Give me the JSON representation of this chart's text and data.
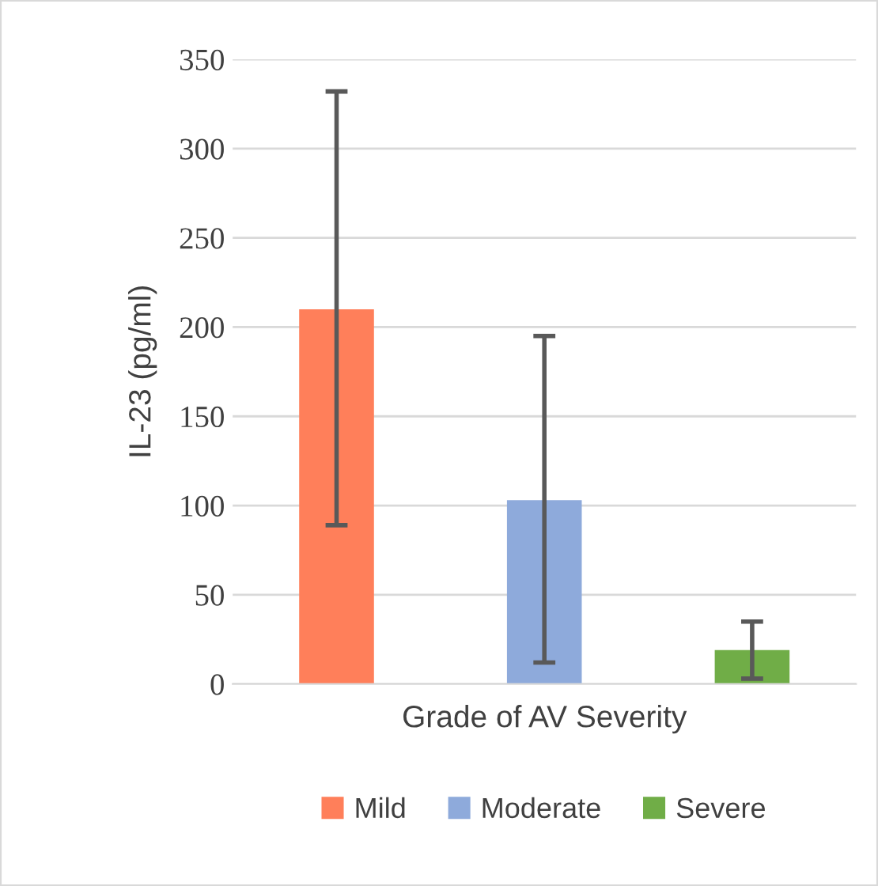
{
  "chart_data": {
    "type": "bar",
    "ylabel": "IL-23 (pg/ml)",
    "xlabel": "Grade of AV Severity",
    "categories": [
      null,
      null,
      null
    ],
    "series": [
      {
        "name": "Mild",
        "color": "#ff7f5a",
        "values": [
          210,
          null,
          null
        ],
        "errors": [
          [
            89,
            332
          ],
          null,
          null
        ]
      },
      {
        "name": "Moderate",
        "color": "#8eaadb",
        "values": [
          null,
          103,
          null
        ],
        "errors": [
          null,
          [
            12,
            195
          ],
          null
        ]
      },
      {
        "name": "Severe",
        "color": "#70ad47",
        "values": [
          null,
          null,
          19
        ],
        "errors": [
          null,
          null,
          [
            3,
            35
          ]
        ]
      }
    ],
    "ylim": [
      0,
      350
    ],
    "yticks": [
      0,
      50,
      100,
      150,
      200,
      250,
      300,
      350
    ],
    "grid": "y",
    "legend": "bottom"
  }
}
